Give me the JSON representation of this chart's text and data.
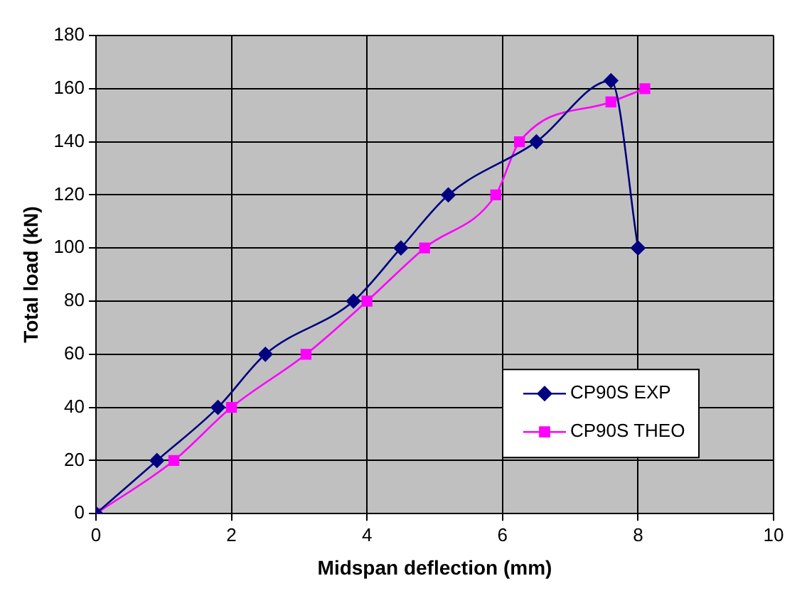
{
  "chart_data": {
    "type": "line",
    "xlabel": "Midspan deflection (mm)",
    "ylabel": "Total load (kN)",
    "xlim": [
      0,
      10
    ],
    "xticks": [
      0,
      2,
      4,
      6,
      8,
      10
    ],
    "ylim": [
      0,
      180
    ],
    "yticks": [
      0,
      20,
      40,
      60,
      80,
      100,
      120,
      140,
      160,
      180
    ],
    "grid": true,
    "legend": "bottom right",
    "line_style": "solid",
    "series": [
      {
        "name": "CP90S EXP",
        "color": "#000080",
        "marker": "diamond",
        "x": [
          0,
          0.9,
          1.8,
          2.5,
          3.8,
          4.5,
          5.2,
          6.5,
          7.6,
          8.0
        ],
        "values": [
          0,
          20,
          40,
          60,
          80,
          100,
          120,
          140,
          163,
          100
        ]
      },
      {
        "name": "CP90S THEO",
        "color": "#ff00ff",
        "marker": "square",
        "x": [
          0,
          1.15,
          2,
          3.1,
          4,
          4.85,
          5.9,
          6.25,
          7.6,
          8.1
        ],
        "values": [
          0,
          20,
          40,
          60,
          80,
          100,
          120,
          140,
          155,
          160
        ]
      }
    ]
  }
}
